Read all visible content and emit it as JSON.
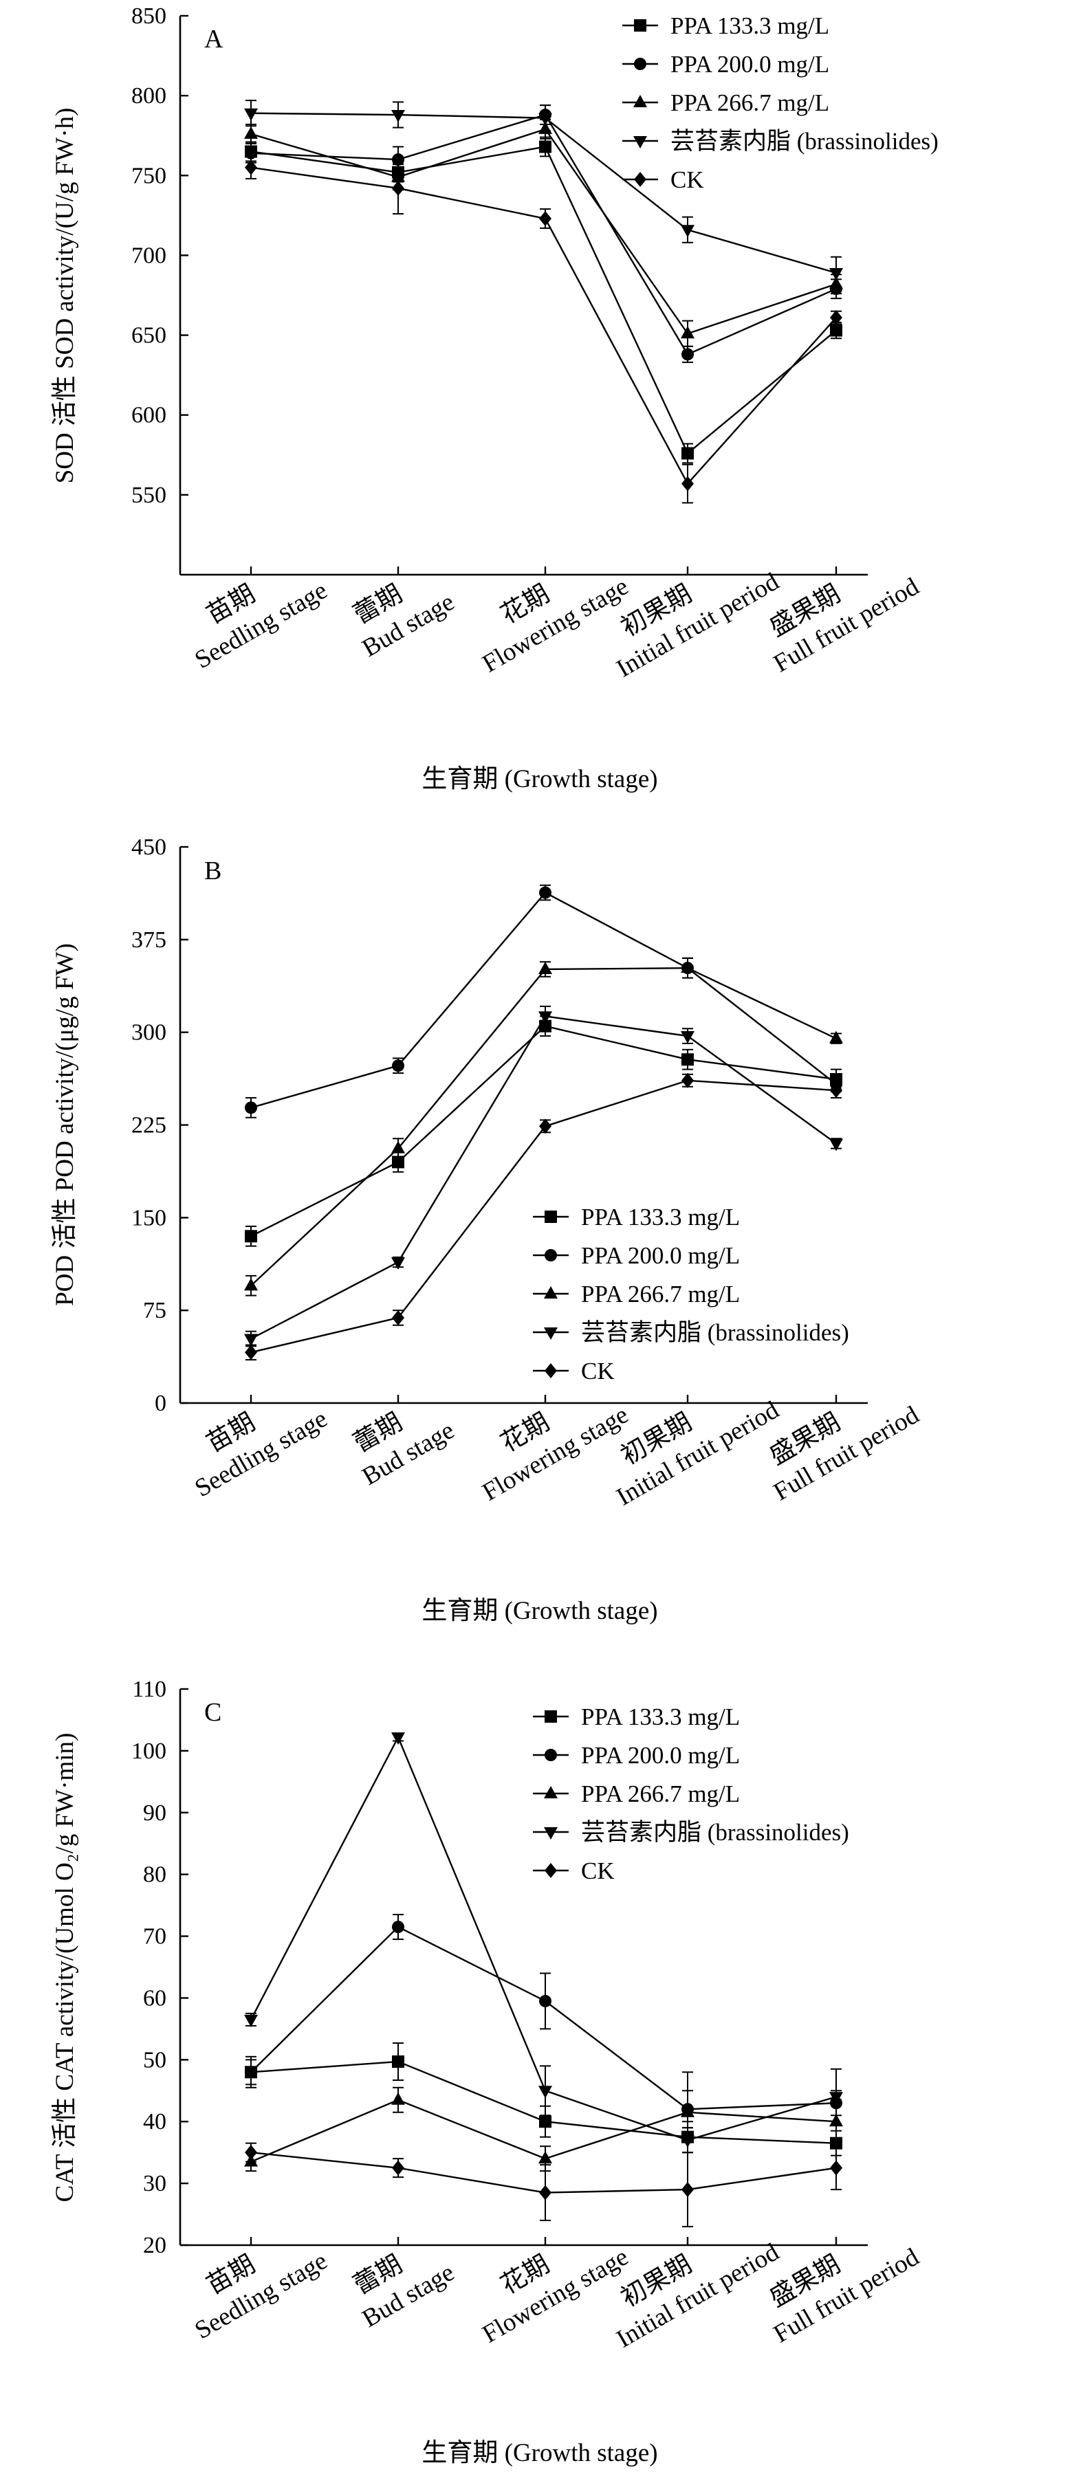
{
  "chart_data": [
    {
      "type": "line",
      "panel_label": "A",
      "categories": [
        {
          "cn": "苗期",
          "en": "Seedling stage"
        },
        {
          "cn": "蕾期",
          "en": "Bud stage"
        },
        {
          "cn": "花期",
          "en": "Flowering stage"
        },
        {
          "cn": "初果期",
          "en": "Initial fruit period"
        },
        {
          "cn": "盛果期",
          "en": "Full fruit period"
        }
      ],
      "xlabel": "生育期 (Growth stage)",
      "ylabel": "SOD 活性 SOD activity/(U/g FW·h)",
      "ylim": [
        500,
        850
      ],
      "yticks": [
        550,
        600,
        650,
        700,
        750,
        800,
        850
      ],
      "legend_position": "top-right",
      "series": [
        {
          "name": "PPA 133.3 mg/L",
          "marker": "square",
          "values": [
            765,
            752,
            768,
            576,
            653
          ],
          "errors": [
            6,
            6,
            6,
            6,
            5
          ]
        },
        {
          "name": "PPA 200.0 mg/L",
          "marker": "circle",
          "values": [
            764,
            760,
            788,
            638,
            679
          ],
          "errors": [
            6,
            8,
            6,
            5,
            6
          ]
        },
        {
          "name": "PPA 266.7 mg/L",
          "marker": "triangle-up",
          "values": [
            776,
            749,
            779,
            651,
            682
          ],
          "errors": [
            6,
            8,
            6,
            8,
            6
          ]
        },
        {
          "name": "芸苔素内脂 (brassinolides)",
          "marker": "triangle-down",
          "values": [
            789,
            788,
            786,
            716,
            689
          ],
          "errors": [
            8,
            8,
            8,
            8,
            10
          ]
        },
        {
          "name": "CK",
          "marker": "diamond",
          "values": [
            755,
            742,
            723,
            557,
            661
          ],
          "errors": [
            7,
            16,
            6,
            12,
            4
          ]
        }
      ]
    },
    {
      "type": "line",
      "panel_label": "B",
      "categories": [
        {
          "cn": "苗期",
          "en": "Seedling stage"
        },
        {
          "cn": "蕾期",
          "en": "Bud stage"
        },
        {
          "cn": "花期",
          "en": "Flowering stage"
        },
        {
          "cn": "初果期",
          "en": "Initial fruit period"
        },
        {
          "cn": "盛果期",
          "en": "Full fruit period"
        }
      ],
      "xlabel": "生育期 (Growth stage)",
      "ylabel": "POD 活性 POD activity/(μg/g FW)",
      "ylim": [
        0,
        450
      ],
      "yticks": [
        0,
        75,
        150,
        225,
        300,
        375,
        450
      ],
      "legend_position": "bottom-right",
      "series": [
        {
          "name": "PPA 133.3 mg/L",
          "marker": "square",
          "values": [
            135,
            195,
            305,
            278,
            262
          ],
          "errors": [
            8,
            8,
            8,
            8,
            8
          ]
        },
        {
          "name": "PPA 200.0 mg/L",
          "marker": "circle",
          "values": [
            239,
            273,
            413,
            352,
            258
          ],
          "errors": [
            8,
            6,
            6,
            8,
            6
          ]
        },
        {
          "name": "PPA 266.7 mg/L",
          "marker": "triangle-up",
          "values": [
            95,
            206,
            351,
            352,
            295
          ],
          "errors": [
            8,
            8,
            6,
            8,
            4
          ]
        },
        {
          "name": "芸苔素内脂 (brassinolides)",
          "marker": "triangle-down",
          "values": [
            52,
            114,
            313,
            297,
            210
          ],
          "errors": [
            6,
            4,
            8,
            6,
            4
          ]
        },
        {
          "name": "CK",
          "marker": "diamond",
          "values": [
            41,
            69,
            224,
            261,
            253
          ],
          "errors": [
            6,
            6,
            5,
            5,
            6
          ]
        }
      ]
    },
    {
      "type": "line",
      "panel_label": "C",
      "categories": [
        {
          "cn": "苗期",
          "en": "Seedling stage"
        },
        {
          "cn": "蕾期",
          "en": "Bud stage"
        },
        {
          "cn": "花期",
          "en": "Flowering stage"
        },
        {
          "cn": "初果期",
          "en": "Initial fruit period"
        },
        {
          "cn": "盛果期",
          "en": "Full fruit period"
        }
      ],
      "xlabel": "生育期 (Growth stage)",
      "ylabel": "CAT 活性 CAT activity/(Umol O₂/g FW·min)",
      "ylim": [
        20,
        110
      ],
      "yticks": [
        20,
        30,
        40,
        50,
        60,
        70,
        80,
        90,
        100,
        110
      ],
      "legend_position": "top-right",
      "series": [
        {
          "name": "PPA 133.3 mg/L",
          "marker": "square",
          "values": [
            48,
            49.7,
            40,
            37.5,
            36.5
          ],
          "errors": [
            2.5,
            3,
            2.5,
            2.5,
            2
          ]
        },
        {
          "name": "PPA 200.0 mg/L",
          "marker": "circle",
          "values": [
            48,
            71.5,
            59.5,
            42,
            43
          ],
          "errors": [
            2,
            2,
            4.5,
            3,
            2
          ]
        },
        {
          "name": "PPA 266.7 mg/L",
          "marker": "triangle-up",
          "values": [
            33.5,
            43.5,
            34,
            41.5,
            40
          ],
          "errors": [
            1.5,
            2,
            2,
            6.5,
            3.5
          ]
        },
        {
          "name": "芸苔素内脂 (brassinolides)",
          "marker": "triangle-down",
          "values": [
            56.5,
            102.2,
            45,
            37,
            44
          ],
          "errors": [
            1,
            0.6,
            4,
            2,
            4.5
          ]
        },
        {
          "name": "CK",
          "marker": "diamond",
          "values": [
            35,
            32.5,
            28.5,
            29,
            32.5
          ],
          "errors": [
            1.5,
            1.5,
            4.5,
            6,
            3.5
          ]
        }
      ]
    }
  ]
}
